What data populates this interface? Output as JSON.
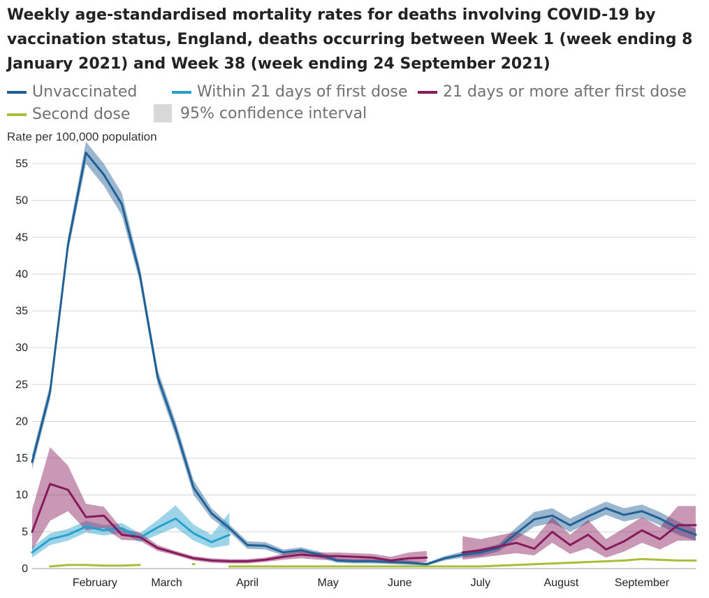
{
  "title": "Weekly age-standardised mortality rates for deaths involving COVID-19 by vaccination status, England, deaths occurring between Week 1 (week ending 8 January 2021) and Week 38 (week ending 24 September 2021)",
  "legend": [
    {
      "label": "Unvaccinated",
      "color": "#206095"
    },
    {
      "label": "Within 21 days of first dose",
      "color": "#27a0cc"
    },
    {
      "label": "21 days or more after first dose",
      "color": "#871a5b"
    },
    {
      "label": "Second dose",
      "color": "#a8bd3a"
    },
    {
      "label": "95% confidence interval",
      "color": "#d8d8d8"
    }
  ],
  "chart_data": {
    "type": "line",
    "ylabel": "Rate per 100,000 population",
    "xlabel": "",
    "ylim": [
      0,
      57
    ],
    "yticks": [
      0,
      5,
      10,
      15,
      20,
      25,
      30,
      35,
      40,
      45,
      50,
      55
    ],
    "xlim": [
      1,
      38
    ],
    "month_labels": [
      {
        "label": "February",
        "week": 4.5
      },
      {
        "label": "March",
        "week": 8.5
      },
      {
        "label": "April",
        "week": 13
      },
      {
        "label": "May",
        "week": 17.5
      },
      {
        "label": "June",
        "week": 21.5
      },
      {
        "label": "July",
        "week": 26
      },
      {
        "label": "August",
        "week": 30.5
      },
      {
        "label": "September",
        "week": 35
      }
    ],
    "grid": true,
    "series": [
      {
        "name": "Unvaccinated",
        "color": "#206095",
        "x": [
          1,
          2,
          3,
          4,
          5,
          6,
          7,
          8,
          9,
          10,
          11,
          12,
          13,
          14,
          15,
          16,
          17,
          18,
          19,
          20,
          21,
          22,
          23,
          24,
          25,
          26,
          27,
          28,
          29,
          30,
          31,
          32,
          33,
          34,
          35,
          36,
          37,
          38
        ],
        "y": [
          14.5,
          24,
          44,
          56.5,
          53.5,
          49.5,
          40,
          26,
          19,
          11,
          7.5,
          5.5,
          3.2,
          3.1,
          2.2,
          2.5,
          1.9,
          1.1,
          1.0,
          1.0,
          0.9,
          0.8,
          0.6,
          1.4,
          1.9,
          2.2,
          2.8,
          4.8,
          6.7,
          7.2,
          5.9,
          7.1,
          8.2,
          7.3,
          7.8,
          6.8,
          5.5,
          4.6
        ],
        "lower": [
          13.5,
          23,
          43,
          55,
          52,
          48,
          39,
          25,
          18,
          10,
          6.8,
          5,
          2.7,
          2.6,
          1.8,
          2.1,
          1.5,
          0.8,
          0.7,
          0.7,
          0.6,
          0.5,
          0.4,
          1.1,
          1.5,
          1.7,
          2.3,
          4.0,
          5.7,
          6.2,
          5.0,
          6.2,
          7.3,
          6.4,
          6.9,
          5.9,
          4.6,
          3.8
        ],
        "upper": [
          15.5,
          25,
          45,
          58,
          55,
          51,
          41,
          27,
          20,
          12,
          8.2,
          6,
          3.7,
          3.6,
          2.6,
          2.9,
          2.3,
          1.4,
          1.3,
          1.3,
          1.2,
          1.1,
          0.8,
          1.7,
          2.3,
          2.7,
          3.3,
          5.6,
          7.7,
          8.2,
          6.8,
          8.0,
          9.1,
          8.2,
          8.7,
          7.7,
          6.4,
          5.4
        ]
      },
      {
        "name": "Within 21 days of first dose",
        "color": "#27a0cc",
        "x": [
          1,
          2,
          3,
          4,
          5,
          6,
          7,
          8,
          9,
          10,
          11,
          12
        ],
        "y": [
          2.2,
          4,
          4.6,
          5.7,
          5.2,
          5.5,
          4.2,
          5.6,
          6.8,
          4.8,
          3.6,
          4.6
        ],
        "lower": [
          1.5,
          3.2,
          3.8,
          4.9,
          4.5,
          4.8,
          3.6,
          4.6,
          5.6,
          3.8,
          2.8,
          3.2
        ],
        "upper": [
          2.9,
          4.8,
          5.4,
          6.5,
          5.9,
          6.2,
          4.8,
          6.6,
          8.6,
          6.0,
          4.6,
          7.6
        ]
      },
      {
        "name": "21 days or more after first dose",
        "color": "#871a5b",
        "x": [
          1,
          2,
          3,
          4,
          5,
          6,
          7,
          8,
          9,
          10,
          11,
          12,
          13,
          14,
          15,
          16,
          17,
          18,
          19,
          20,
          21,
          22,
          23,
          24,
          25,
          26,
          27,
          28,
          29,
          30,
          31,
          32,
          33,
          34,
          35,
          36,
          37,
          38
        ],
        "y": [
          5,
          11.5,
          10.7,
          7,
          7.2,
          4.6,
          4.3,
          2.8,
          2.1,
          1.4,
          1.1,
          1.0,
          1.0,
          1.2,
          1.6,
          1.9,
          1.7,
          1.7,
          1.6,
          1.5,
          1.1,
          1.4,
          1.5,
          null,
          2.2,
          2.5,
          3.0,
          3.5,
          2.7,
          5.0,
          3.2,
          4.6,
          2.6,
          3.7,
          5.2,
          4.0,
          5.9,
          5.9
        ],
        "lower": [
          2.5,
          6.5,
          7.8,
          5.2,
          5.5,
          3.9,
          3.8,
          2.4,
          1.8,
          1.1,
          0.8,
          0.7,
          0.7,
          0.9,
          1.2,
          1.4,
          1.2,
          1.2,
          1.1,
          1.0,
          0.7,
          0.8,
          0.9,
          null,
          1.2,
          1.5,
          1.8,
          2.1,
          1.8,
          3.5,
          2.0,
          2.8,
          1.5,
          2.3,
          3.5,
          2.6,
          3.8,
          3.8
        ],
        "upper": [
          8,
          16.5,
          14,
          8.8,
          8.4,
          5.4,
          4.9,
          3.2,
          2.4,
          1.7,
          1.4,
          1.3,
          1.3,
          1.5,
          2.0,
          2.4,
          2.2,
          2.2,
          2.1,
          2.0,
          1.6,
          2.2,
          2.4,
          null,
          4.4,
          4.0,
          4.5,
          5.0,
          4.0,
          7.0,
          4.6,
          6.6,
          4.0,
          5.5,
          7.0,
          5.6,
          8.5,
          8.5
        ]
      },
      {
        "name": "Second dose",
        "color": "#a8bd3a",
        "x": [
          2,
          3,
          4,
          5,
          6,
          7,
          8,
          9,
          10,
          11,
          12,
          13,
          14,
          15,
          16,
          17,
          18,
          19,
          20,
          21,
          22,
          23,
          24,
          25,
          26,
          27,
          28,
          29,
          30,
          31,
          32,
          33,
          34,
          35,
          36,
          37,
          38
        ],
        "y": [
          0.3,
          0.5,
          0.5,
          0.4,
          0.4,
          0.5,
          null,
          null,
          0.6,
          null,
          0.3,
          0.3,
          0.3,
          0.3,
          0.3,
          0.3,
          0.3,
          0.3,
          0.3,
          0.3,
          0.3,
          0.3,
          0.3,
          0.3,
          0.3,
          0.4,
          0.5,
          0.6,
          0.7,
          0.8,
          0.9,
          1.0,
          1.1,
          1.3,
          1.2,
          1.1,
          1.1
        ],
        "lower": [
          0.2,
          0.4,
          0.4,
          0.3,
          0.3,
          0.4,
          null,
          null,
          0.5,
          null,
          0.2,
          0.2,
          0.2,
          0.2,
          0.2,
          0.2,
          0.2,
          0.2,
          0.2,
          0.2,
          0.2,
          0.2,
          0.2,
          0.2,
          0.2,
          0.3,
          0.4,
          0.5,
          0.6,
          0.7,
          0.8,
          0.9,
          1.0,
          1.2,
          1.1,
          1.0,
          1.0
        ],
        "upper": [
          0.4,
          0.6,
          0.6,
          0.5,
          0.5,
          0.6,
          null,
          null,
          0.7,
          null,
          0.4,
          0.4,
          0.4,
          0.4,
          0.4,
          0.4,
          0.4,
          0.4,
          0.4,
          0.4,
          0.4,
          0.4,
          0.4,
          0.4,
          0.4,
          0.5,
          0.6,
          0.7,
          0.8,
          0.9,
          1.0,
          1.1,
          1.2,
          1.4,
          1.3,
          1.2,
          1.2
        ]
      }
    ]
  }
}
